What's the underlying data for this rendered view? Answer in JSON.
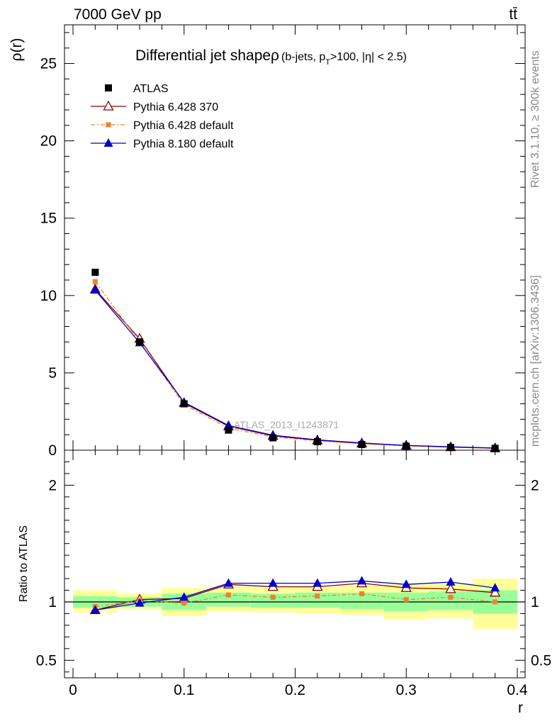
{
  "header": {
    "left": "7000 GeV pp",
    "right": "tt̄"
  },
  "side_notes": {
    "rivet": "Rivet 3.1.10, ≥ 300k events",
    "mcplots": "mcplots.cern.ch [arXiv:1306.3436]"
  },
  "chart_data": [
    {
      "type": "scatter",
      "title": "Differential jet shapeρ",
      "subtitle_parts": [
        "(b-jets, p",
        "T",
        ">100, |η| < 2.5)"
      ],
      "ylabel": "ρ(r)",
      "xlabel": "",
      "watermark": "ATLAS_2013_I1243871",
      "xlim": [
        0,
        0.4
      ],
      "ylim": [
        0,
        27.5
      ],
      "yticks": [
        0,
        5,
        10,
        15,
        20,
        25
      ],
      "ytick_labels": [
        "0",
        "5",
        "10",
        "15",
        "20",
        "25"
      ],
      "legend_position": "top-left",
      "x": [
        0.02,
        0.06,
        0.1,
        0.14,
        0.18,
        0.22,
        0.26,
        0.3,
        0.34,
        0.38
      ],
      "series": [
        {
          "name": "ATLAS",
          "color": "#000000",
          "marker": "square",
          "line": "none",
          "values": [
            11.5,
            7.0,
            3.0,
            1.3,
            0.8,
            0.55,
            0.37,
            0.26,
            0.18,
            0.12
          ]
        },
        {
          "name": "Pythia 6.428 370",
          "color": "#8b0000",
          "marker": "open-triangle",
          "line": "solid",
          "values": [
            10.4,
            7.2,
            3.05,
            1.55,
            0.93,
            0.64,
            0.44,
            0.3,
            0.2,
            0.13
          ]
        },
        {
          "name": "Pythia 6.428 default",
          "color": "#f08030",
          "marker": "small-square",
          "line": "dashdot",
          "values": [
            10.9,
            7.0,
            2.95,
            1.42,
            0.86,
            0.6,
            0.41,
            0.27,
            0.19,
            0.12
          ]
        },
        {
          "name": "Pythia 8.180 default",
          "color": "#0000cc",
          "marker": "triangle",
          "line": "solid",
          "values": [
            10.35,
            6.95,
            3.1,
            1.6,
            0.97,
            0.67,
            0.47,
            0.31,
            0.22,
            0.14
          ]
        }
      ]
    },
    {
      "type": "scatter",
      "title": "",
      "ylabel": "Ratio to ATLAS",
      "xlabel": "r",
      "xlim": [
        0,
        0.4
      ],
      "ylim": [
        0.35,
        2.3
      ],
      "xticks": [
        0,
        0.1,
        0.2,
        0.3,
        0.4
      ],
      "xtick_labels": [
        "0",
        "0.1",
        "0.2",
        "0.3",
        "0.4"
      ],
      "yticks": [
        0.5,
        1,
        2
      ],
      "ytick_labels": [
        "0.5",
        "1",
        "2"
      ],
      "bands": {
        "edges": [
          0.0,
          0.04,
          0.08,
          0.12,
          0.16,
          0.2,
          0.24,
          0.28,
          0.32,
          0.36,
          0.4
        ],
        "yellow": [
          [
            0.91,
            1.1
          ],
          [
            0.94,
            1.07
          ],
          [
            0.88,
            1.12
          ],
          [
            0.92,
            1.13
          ],
          [
            0.91,
            1.12
          ],
          [
            0.9,
            1.13
          ],
          [
            0.89,
            1.14
          ],
          [
            0.85,
            1.15
          ],
          [
            0.86,
            1.16
          ],
          [
            0.77,
            1.2
          ]
        ],
        "green": [
          [
            0.95,
            1.05
          ],
          [
            0.96,
            1.04
          ],
          [
            0.93,
            1.07
          ],
          [
            0.96,
            1.08
          ],
          [
            0.95,
            1.07
          ],
          [
            0.95,
            1.08
          ],
          [
            0.94,
            1.08
          ],
          [
            0.92,
            1.08
          ],
          [
            0.93,
            1.09
          ],
          [
            0.9,
            1.1
          ]
        ],
        "yellow_color": "#ffff99",
        "green_color": "#99ff99"
      },
      "series": [
        {
          "name": "Pythia 6.428 370",
          "color": "#8b0000",
          "marker": "open-triangle",
          "line": "solid",
          "values": [
            0.93,
            1.02,
            1.03,
            1.15,
            1.13,
            1.13,
            1.16,
            1.12,
            1.11,
            1.08
          ]
        },
        {
          "name": "Pythia 6.428 default",
          "color": "#f08030",
          "marker": "small-square",
          "line": "dashdot",
          "values": [
            0.96,
            1.01,
            0.99,
            1.06,
            1.04,
            1.05,
            1.07,
            1.02,
            1.04,
            1.0
          ]
        },
        {
          "name": "Pythia 8.180 default",
          "color": "#0000cc",
          "marker": "triangle",
          "line": "solid",
          "values": [
            0.93,
            0.99,
            1.04,
            1.16,
            1.16,
            1.16,
            1.18,
            1.15,
            1.17,
            1.12
          ]
        }
      ]
    }
  ]
}
